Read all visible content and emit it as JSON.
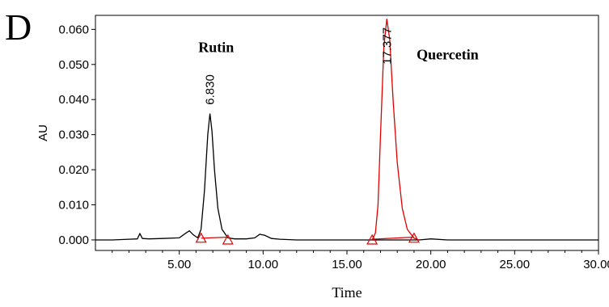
{
  "chart_data": {
    "type": "line",
    "panel_label": "D",
    "xlabel": "Time",
    "ylabel": "AU",
    "xlim": [
      0,
      30
    ],
    "ylim": [
      -0.003,
      0.064
    ],
    "x_ticks": [
      "5.00",
      "10.00",
      "15.00",
      "20.00",
      "25.00",
      "30.00"
    ],
    "y_ticks": [
      "0.000",
      "0.010",
      "0.020",
      "0.030",
      "0.040",
      "0.050",
      "0.060"
    ],
    "grid": false,
    "series": [
      {
        "color": "#000000",
        "points": [
          [
            0.0,
            0.0
          ],
          [
            1.0,
            0.0
          ],
          [
            2.0,
            0.0002
          ],
          [
            2.5,
            0.0003
          ],
          [
            2.65,
            0.0018
          ],
          [
            2.8,
            0.0004
          ],
          [
            3.2,
            0.0003
          ],
          [
            4.0,
            0.0004
          ],
          [
            5.0,
            0.0006
          ],
          [
            5.35,
            0.0018
          ],
          [
            5.6,
            0.0026
          ],
          [
            5.85,
            0.0014
          ],
          [
            6.1,
            0.0006
          ],
          [
            6.3,
            0.003
          ],
          [
            6.5,
            0.014
          ],
          [
            6.7,
            0.03
          ],
          [
            6.83,
            0.036
          ],
          [
            6.95,
            0.031
          ],
          [
            7.1,
            0.02
          ],
          [
            7.3,
            0.009
          ],
          [
            7.55,
            0.003
          ],
          [
            7.9,
            0.0006
          ],
          [
            8.3,
            0.0003
          ],
          [
            9.0,
            0.0003
          ],
          [
            9.5,
            0.0006
          ],
          [
            9.8,
            0.0016
          ],
          [
            10.1,
            0.0013
          ],
          [
            10.5,
            0.0004
          ],
          [
            11.0,
            0.0002
          ],
          [
            12.0,
            0.0
          ],
          [
            16.3,
            0.0
          ],
          [
            19.3,
            0.0
          ],
          [
            20.0,
            0.0003
          ],
          [
            21.0,
            0.0
          ],
          [
            30.0,
            0.0
          ]
        ]
      },
      {
        "color": "#e00000",
        "points": [
          [
            16.5,
            0.0
          ],
          [
            16.7,
            0.002
          ],
          [
            16.85,
            0.01
          ],
          [
            17.0,
            0.03
          ],
          [
            17.2,
            0.055
          ],
          [
            17.377,
            0.063
          ],
          [
            17.55,
            0.057
          ],
          [
            17.75,
            0.04
          ],
          [
            18.0,
            0.022
          ],
          [
            18.3,
            0.009
          ],
          [
            18.6,
            0.003
          ],
          [
            19.0,
            0.0005
          ],
          [
            19.3,
            0.0
          ]
        ]
      }
    ],
    "baselines": [
      {
        "color": "#e00000",
        "x": [
          6.3,
          7.9
        ],
        "y": [
          0.0005,
          0.0008
        ]
      },
      {
        "color": "#e00000",
        "x": [
          16.5,
          19.0
        ],
        "y": [
          0.0002,
          0.0008
        ]
      }
    ],
    "markers": [
      {
        "color": "#e00000",
        "shape": "triangle",
        "x": 6.3,
        "y": 0.0005
      },
      {
        "color": "#e00000",
        "shape": "triangle",
        "x": 7.9,
        "y": 0.0
      },
      {
        "color": "#e00000",
        "shape": "triangle",
        "x": 16.5,
        "y": 0.0
      },
      {
        "color": "#e00000",
        "shape": "triangle",
        "x": 19.0,
        "y": 0.0005
      }
    ],
    "annotations": [
      {
        "type": "peak-name",
        "text": "Rutin",
        "x": 7.2,
        "y": 0.0535
      },
      {
        "type": "retention-time",
        "text": "6.830",
        "x": 6.83,
        "y": 0.0385
      },
      {
        "type": "retention-time",
        "text": "17.377",
        "x": 17.377,
        "y": 0.05
      },
      {
        "type": "peak-name",
        "text": "Quercetin",
        "x": 21.0,
        "y": 0.0515
      }
    ]
  }
}
